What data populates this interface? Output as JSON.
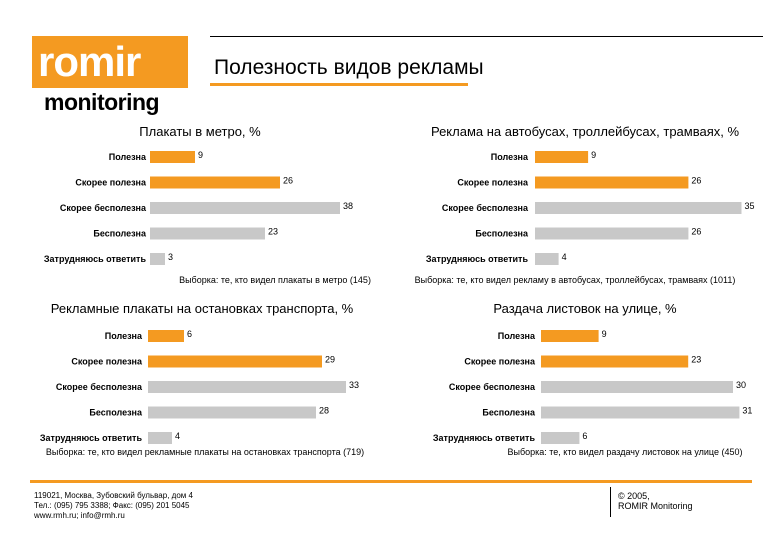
{
  "logo": {
    "word": "romir",
    "sub": "monitoring",
    "color": "#f49a21"
  },
  "page_title": "Полезность видов рекламы",
  "accent_color": "#f49a21",
  "colors": {
    "useful": "#f49a21",
    "not_useful": "#c8c8c8"
  },
  "footer": {
    "address": "119021, Москва, Зубовский бульвар, дом 4",
    "phone": "Тел.: (095) 795 3388; Факс: (095) 201 5045",
    "web": "www.rmh.ru; info@rmh.ru",
    "copyright": "© 2005,",
    "company": "ROMIR Monitoring"
  },
  "chart_data": [
    {
      "type": "bar",
      "orientation": "horizontal",
      "title": "Плакаты в метро, %",
      "categories": [
        "Полезна",
        "Скорее полезна",
        "Скорее бесполезна",
        "Бесполезна",
        "Затрудняюсь ответить"
      ],
      "values": [
        9,
        26,
        38,
        23,
        3
      ],
      "note": "Выборка: те, кто видел плакаты в метро  (145)"
    },
    {
      "type": "bar",
      "orientation": "horizontal",
      "title": "Реклама на автобусах, троллейбусах, трамваях, %",
      "categories": [
        "Полезна",
        "Скорее полезна",
        "Скорее бесполезна",
        "Бесполезна",
        "Затрудняюсь ответить"
      ],
      "values": [
        9,
        26,
        35,
        26,
        4
      ],
      "note": "Выборка: те, кто видел рекламу в автобусах, троллейбусах, трамваях  (1011)"
    },
    {
      "type": "bar",
      "orientation": "horizontal",
      "title": "Рекламные плакаты на остановках транспорта, %",
      "categories": [
        "Полезна",
        "Скорее полезна",
        "Скорее бесполезна",
        "Бесполезна",
        "Затрудняюсь ответить"
      ],
      "values": [
        6,
        29,
        33,
        28,
        4
      ],
      "note": "Выборка: те, кто видел рекламные плакаты на остановках транспорта  (719)"
    },
    {
      "type": "bar",
      "orientation": "horizontal",
      "title": "Раздача листовок на улице, %",
      "categories": [
        "Полезна",
        "Скорее полезна",
        "Скорее бесполезна",
        "Бесполезна",
        "Затрудняюсь ответить"
      ],
      "values": [
        9,
        23,
        30,
        31,
        6
      ],
      "note": "Выборка: те, кто видел раздачу листовок на улице (450)"
    }
  ]
}
